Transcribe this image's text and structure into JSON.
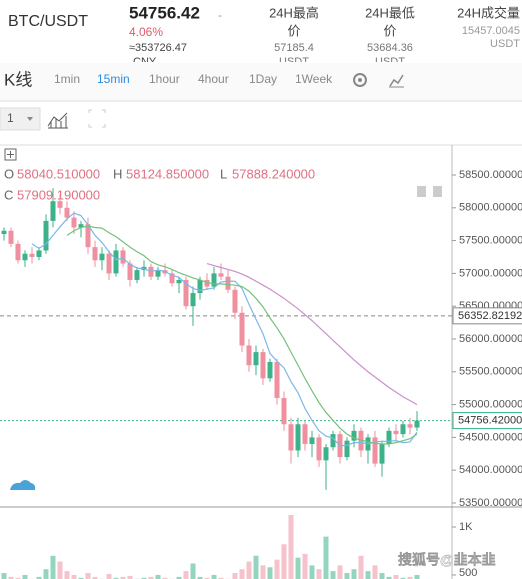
{
  "header": {
    "pair": "BTC/USDT",
    "price": "54756.42",
    "dash": "-",
    "change": "4.06%",
    "cny": "≈353726.47",
    "cny_unit": "CNY",
    "stats": [
      {
        "label": "24H最高",
        "label2": "价",
        "value": "57185.4",
        "unit": "USDT"
      },
      {
        "label": "24H最低",
        "label2": "价",
        "value": "53684.36",
        "unit": "USDT"
      },
      {
        "label": "24H成交量",
        "value": "15457.0045",
        "unit": "USDT"
      }
    ]
  },
  "toolbar": {
    "title": "K线",
    "intervals": [
      "1min",
      "15min",
      "1hour",
      "4hour",
      "1Day",
      "1Week"
    ],
    "selected": 1,
    "select_value": "1"
  },
  "legend": {
    "o": "O",
    "o_value": "58040.510000",
    "h": "H",
    "h_value": "58124.850000",
    "l": "L",
    "l_value": "57888.240000",
    "c": "C",
    "c_value": "57909.190000"
  },
  "watermark": "搜狐号@韭本韭",
  "chart_data": {
    "type": "candlestick",
    "up_color": "#3bb28a",
    "down_color": "#ef8fa0",
    "ylim": [
      53454,
      58942
    ],
    "yticks": [
      {
        "value": 58500,
        "label": "58500.00000"
      },
      {
        "value": 58000,
        "label": "58000.00000"
      },
      {
        "value": 57500,
        "label": "57500.00000"
      },
      {
        "value": 57000,
        "label": "57000.00000"
      },
      {
        "value": 56500,
        "label": "56500.00000"
      },
      {
        "value": 56000,
        "label": "56000.00000"
      },
      {
        "value": 55500,
        "label": "55500.00000"
      },
      {
        "value": 55000,
        "label": "55000.00000"
      },
      {
        "value": 54500,
        "label": "54500.00000"
      },
      {
        "value": 54000,
        "label": "54000.00000"
      },
      {
        "value": 53500,
        "label": "53500.00000"
      }
    ],
    "last_price": {
      "value": 54756.42,
      "label": "54756.42000",
      "color": "#3bb28a"
    },
    "high_line": {
      "value": 56352.82192,
      "label": "56352.82192",
      "color": "#888888"
    },
    "open": [
      57600,
      57650,
      57450,
      57200,
      57300,
      57250,
      57350,
      57800,
      58100,
      58000,
      57850,
      57700,
      57750,
      57400,
      57200,
      57300,
      57000,
      57350,
      57150,
      56900,
      57050,
      57100,
      56950,
      57050,
      57000,
      56850,
      56900,
      56500,
      56700,
      56900,
      56800,
      57000,
      56950,
      56750,
      56400,
      55900,
      55600,
      55800,
      55400,
      55650,
      55100,
      54700,
      54300,
      54700,
      54400,
      54500,
      54150,
      54350,
      54550,
      54200,
      54450,
      54600,
      54300,
      54500,
      54100,
      54400,
      54600,
      54550,
      54700,
      54650
    ],
    "high": [
      57700,
      57700,
      57500,
      57350,
      57400,
      57400,
      57900,
      58300,
      58200,
      58100,
      57950,
      57800,
      57850,
      57500,
      57400,
      57350,
      57450,
      57400,
      57200,
      57100,
      57200,
      57150,
      57100,
      57150,
      57050,
      56950,
      56950,
      56800,
      56950,
      57000,
      57100,
      57150,
      57050,
      56800,
      56500,
      56000,
      55900,
      55850,
      55700,
      55700,
      55200,
      54800,
      54800,
      54750,
      54600,
      54550,
      54400,
      54600,
      54600,
      54500,
      54700,
      54650,
      54550,
      54600,
      54450,
      54650,
      54700,
      54750,
      54800,
      54900
    ],
    "low": [
      57500,
      57400,
      57150,
      57100,
      57150,
      57200,
      57300,
      57700,
      57900,
      57800,
      57600,
      57550,
      57300,
      57100,
      57050,
      56900,
      56950,
      57100,
      56800,
      56850,
      56950,
      56900,
      56900,
      56950,
      56800,
      56700,
      56450,
      56200,
      56600,
      56750,
      56750,
      56900,
      56700,
      56300,
      55800,
      55500,
      55450,
      55300,
      55350,
      55000,
      54600,
      54100,
      54200,
      54300,
      54200,
      54050,
      53700,
      54300,
      54100,
      54150,
      54350,
      54200,
      54100,
      54050,
      53900,
      54350,
      54450,
      54500,
      54550,
      54600
    ],
    "close": [
      57650,
      57450,
      57200,
      57300,
      57250,
      57350,
      57800,
      58100,
      58000,
      57850,
      57700,
      57750,
      57400,
      57200,
      57300,
      57000,
      57350,
      57150,
      56900,
      57050,
      57100,
      56950,
      57050,
      57000,
      56850,
      56900,
      56500,
      56700,
      56900,
      56800,
      57000,
      56950,
      56750,
      56400,
      55900,
      55600,
      55800,
      55400,
      55650,
      55100,
      54700,
      54300,
      54700,
      54400,
      54500,
      54150,
      54350,
      54550,
      54200,
      54450,
      54600,
      54300,
      54500,
      54100,
      54400,
      54600,
      54550,
      54700,
      54650,
      54756.42
    ],
    "ma": [
      {
        "color": "#7ab8e8",
        "values": [
          null,
          null,
          null,
          null,
          57450,
          57380,
          57450,
          57580,
          57710,
          57830,
          57920,
          57880,
          57740,
          57580,
          57470,
          57330,
          57210,
          57230,
          57140,
          57080,
          57070,
          57030,
          57050,
          57030,
          56970,
          56940,
          56840,
          56770,
          56740,
          56760,
          56780,
          56870,
          56880,
          56880,
          56770,
          56530,
          56300,
          56080,
          55780,
          55660,
          55560,
          55350,
          55180,
          54940,
          54760,
          54600,
          54520,
          54490,
          54370,
          54380,
          54420,
          54420,
          54400,
          54430,
          54440,
          54440,
          54450,
          54420,
          54430,
          54580
        ]
      },
      {
        "color": "#74c27a",
        "values": [
          null,
          null,
          null,
          null,
          null,
          null,
          null,
          null,
          null,
          57580,
          57650,
          57700,
          57720,
          57700,
          57690,
          57620,
          57560,
          57480,
          57400,
          57330,
          57270,
          57180,
          57130,
          57100,
          57060,
          57010,
          56970,
          56930,
          56900,
          56860,
          56840,
          56840,
          56830,
          56820,
          56800,
          56730,
          56620,
          56490,
          56320,
          56170,
          56000,
          55800,
          55600,
          55400,
          55210,
          55030,
          54880,
          54760,
          54640,
          54550,
          54490,
          54460,
          54430,
          54410,
          54400,
          54400,
          54420,
          54450,
          54480,
          54550
        ]
      },
      {
        "color": "#cc8fcc",
        "values": [
          null,
          null,
          null,
          null,
          null,
          null,
          null,
          null,
          null,
          null,
          null,
          null,
          null,
          null,
          null,
          null,
          null,
          null,
          null,
          null,
          null,
          null,
          null,
          null,
          null,
          null,
          null,
          null,
          null,
          57150,
          57120,
          57090,
          57060,
          57030,
          56990,
          56940,
          56880,
          56820,
          56760,
          56690,
          56620,
          56540,
          56460,
          56370,
          56280,
          56180,
          56080,
          55980,
          55880,
          55780,
          55680,
          55590,
          55500,
          55420,
          55340,
          55260,
          55190,
          55120,
          55060,
          55000
        ]
      }
    ],
    "volume": [
      520,
      480,
      470,
      500,
      460,
      480,
      560,
      700,
      640,
      540,
      500,
      470,
      520,
      480,
      460,
      510,
      470,
      480,
      490,
      460,
      470,
      480,
      500,
      470,
      460,
      480,
      540,
      620,
      480,
      470,
      500,
      470,
      460,
      520,
      560,
      640,
      700,
      600,
      580,
      660,
      820,
      1125,
      680,
      720,
      600,
      560,
      900,
      540,
      600,
      520,
      560,
      700,
      540,
      600,
      520,
      480,
      500,
      470,
      480,
      500
    ],
    "vlim": [
      458,
      1198
    ],
    "vticks": [
      {
        "value": 1000,
        "label": "1K"
      },
      500
    ]
  }
}
